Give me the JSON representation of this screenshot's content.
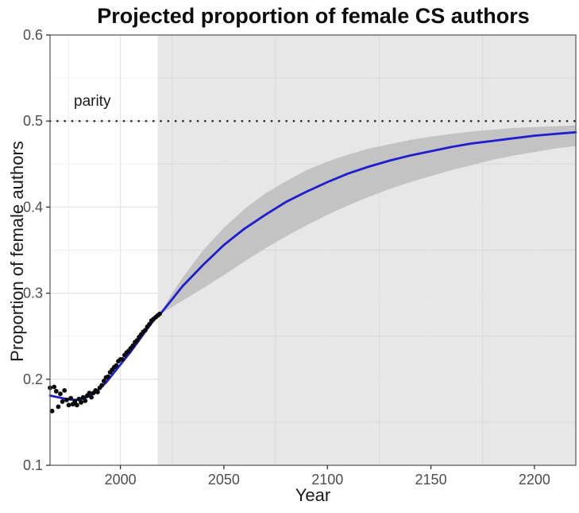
{
  "chart_data": {
    "type": "line",
    "title": "Projected proportion of female CS authors",
    "xlabel": "Year",
    "ylabel": "Proportion of female authors",
    "xlim": [
      1966,
      2220
    ],
    "ylim": [
      0.1,
      0.6
    ],
    "x_ticks": [
      2000,
      2050,
      2100,
      2150,
      2200
    ],
    "x_tick_labels": [
      "2000",
      "2050",
      "2100",
      "2150",
      "2200"
    ],
    "y_ticks": [
      0.1,
      0.2,
      0.3,
      0.4,
      0.5,
      0.6
    ],
    "y_tick_labels": [
      "0.1",
      "0.2",
      "0.3",
      "0.4",
      "0.5",
      "0.6"
    ],
    "grid": "major+minor",
    "legend": "none",
    "parity_line": {
      "y": 0.5,
      "label": "parity",
      "style": "dotted"
    },
    "projection_start_year": 2018,
    "style": {
      "trend_color": "#1e1ecf",
      "point_color": "#0a0a0a",
      "band_color": "#c3c3c3",
      "projection_bg": "#e8e8e8",
      "parity_color": "#2e2e2e",
      "axis_text_color": "#4d4d4d",
      "border_color": "#575757"
    },
    "series": [
      {
        "name": "observed",
        "type": "scatter",
        "points": [
          [
            1966,
            0.19
          ],
          [
            1967,
            0.163
          ],
          [
            1968,
            0.191
          ],
          [
            1969,
            0.186
          ],
          [
            1970,
            0.168
          ],
          [
            1971,
            0.183
          ],
          [
            1972,
            0.174
          ],
          [
            1973,
            0.187
          ],
          [
            1974,
            0.176
          ],
          [
            1975,
            0.17
          ],
          [
            1976,
            0.178
          ],
          [
            1977,
            0.171
          ],
          [
            1978,
            0.174
          ],
          [
            1979,
            0.17
          ],
          [
            1980,
            0.177
          ],
          [
            1981,
            0.173
          ],
          [
            1982,
            0.179
          ],
          [
            1983,
            0.175
          ],
          [
            1984,
            0.181
          ],
          [
            1985,
            0.184
          ],
          [
            1986,
            0.179
          ],
          [
            1987,
            0.184
          ],
          [
            1988,
            0.187
          ],
          [
            1989,
            0.185
          ],
          [
            1990,
            0.19
          ],
          [
            1991,
            0.193
          ],
          [
            1992,
            0.198
          ],
          [
            1993,
            0.202
          ],
          [
            1994,
            0.203
          ],
          [
            1995,
            0.208
          ],
          [
            1996,
            0.211
          ],
          [
            1997,
            0.214
          ],
          [
            1998,
            0.216
          ],
          [
            1999,
            0.221
          ],
          [
            2000,
            0.223
          ],
          [
            2001,
            0.223
          ],
          [
            2002,
            0.228
          ],
          [
            2003,
            0.231
          ],
          [
            2004,
            0.233
          ],
          [
            2005,
            0.236
          ],
          [
            2006,
            0.239
          ],
          [
            2007,
            0.243
          ],
          [
            2008,
            0.245
          ],
          [
            2009,
            0.249
          ],
          [
            2010,
            0.252
          ],
          [
            2011,
            0.255
          ],
          [
            2012,
            0.257
          ],
          [
            2013,
            0.261
          ],
          [
            2014,
            0.264
          ],
          [
            2015,
            0.268
          ],
          [
            2016,
            0.27
          ],
          [
            2017,
            0.272
          ],
          [
            2018,
            0.274
          ],
          [
            2019,
            0.276
          ]
        ]
      },
      {
        "name": "model_median",
        "type": "line",
        "years": [
          1966,
          1970,
          1974,
          1978,
          1982,
          1986,
          1990,
          1993,
          1996,
          1999,
          2002,
          2005,
          2008,
          2011,
          2014,
          2017,
          2019,
          2025,
          2030,
          2040,
          2050,
          2060,
          2070,
          2080,
          2090,
          2100,
          2110,
          2120,
          2130,
          2140,
          2150,
          2160,
          2170,
          2180,
          2190,
          2200,
          2210,
          2220
        ],
        "values": [
          0.181,
          0.179,
          0.177,
          0.176,
          0.177,
          0.182,
          0.189,
          0.196,
          0.205,
          0.214,
          0.223,
          0.232,
          0.242,
          0.252,
          0.262,
          0.271,
          0.275,
          0.293,
          0.308,
          0.333,
          0.356,
          0.375,
          0.391,
          0.406,
          0.418,
          0.429,
          0.439,
          0.447,
          0.454,
          0.46,
          0.465,
          0.47,
          0.474,
          0.477,
          0.48,
          0.483,
          0.485,
          0.487
        ]
      },
      {
        "name": "uncertainty_band",
        "type": "area",
        "years": [
          2019,
          2025,
          2030,
          2040,
          2050,
          2060,
          2070,
          2080,
          2090,
          2100,
          2110,
          2120,
          2130,
          2140,
          2150,
          2160,
          2170,
          2180,
          2190,
          2200,
          2210,
          2220
        ],
        "upper": [
          0.275,
          0.3,
          0.318,
          0.35,
          0.376,
          0.398,
          0.416,
          0.43,
          0.443,
          0.453,
          0.461,
          0.468,
          0.473,
          0.478,
          0.482,
          0.485,
          0.488,
          0.49,
          0.492,
          0.493,
          0.494,
          0.495
        ],
        "lower": [
          0.275,
          0.284,
          0.291,
          0.306,
          0.321,
          0.337,
          0.352,
          0.366,
          0.379,
          0.391,
          0.402,
          0.412,
          0.421,
          0.429,
          0.436,
          0.443,
          0.449,
          0.455,
          0.46,
          0.464,
          0.468,
          0.471
        ]
      }
    ]
  }
}
